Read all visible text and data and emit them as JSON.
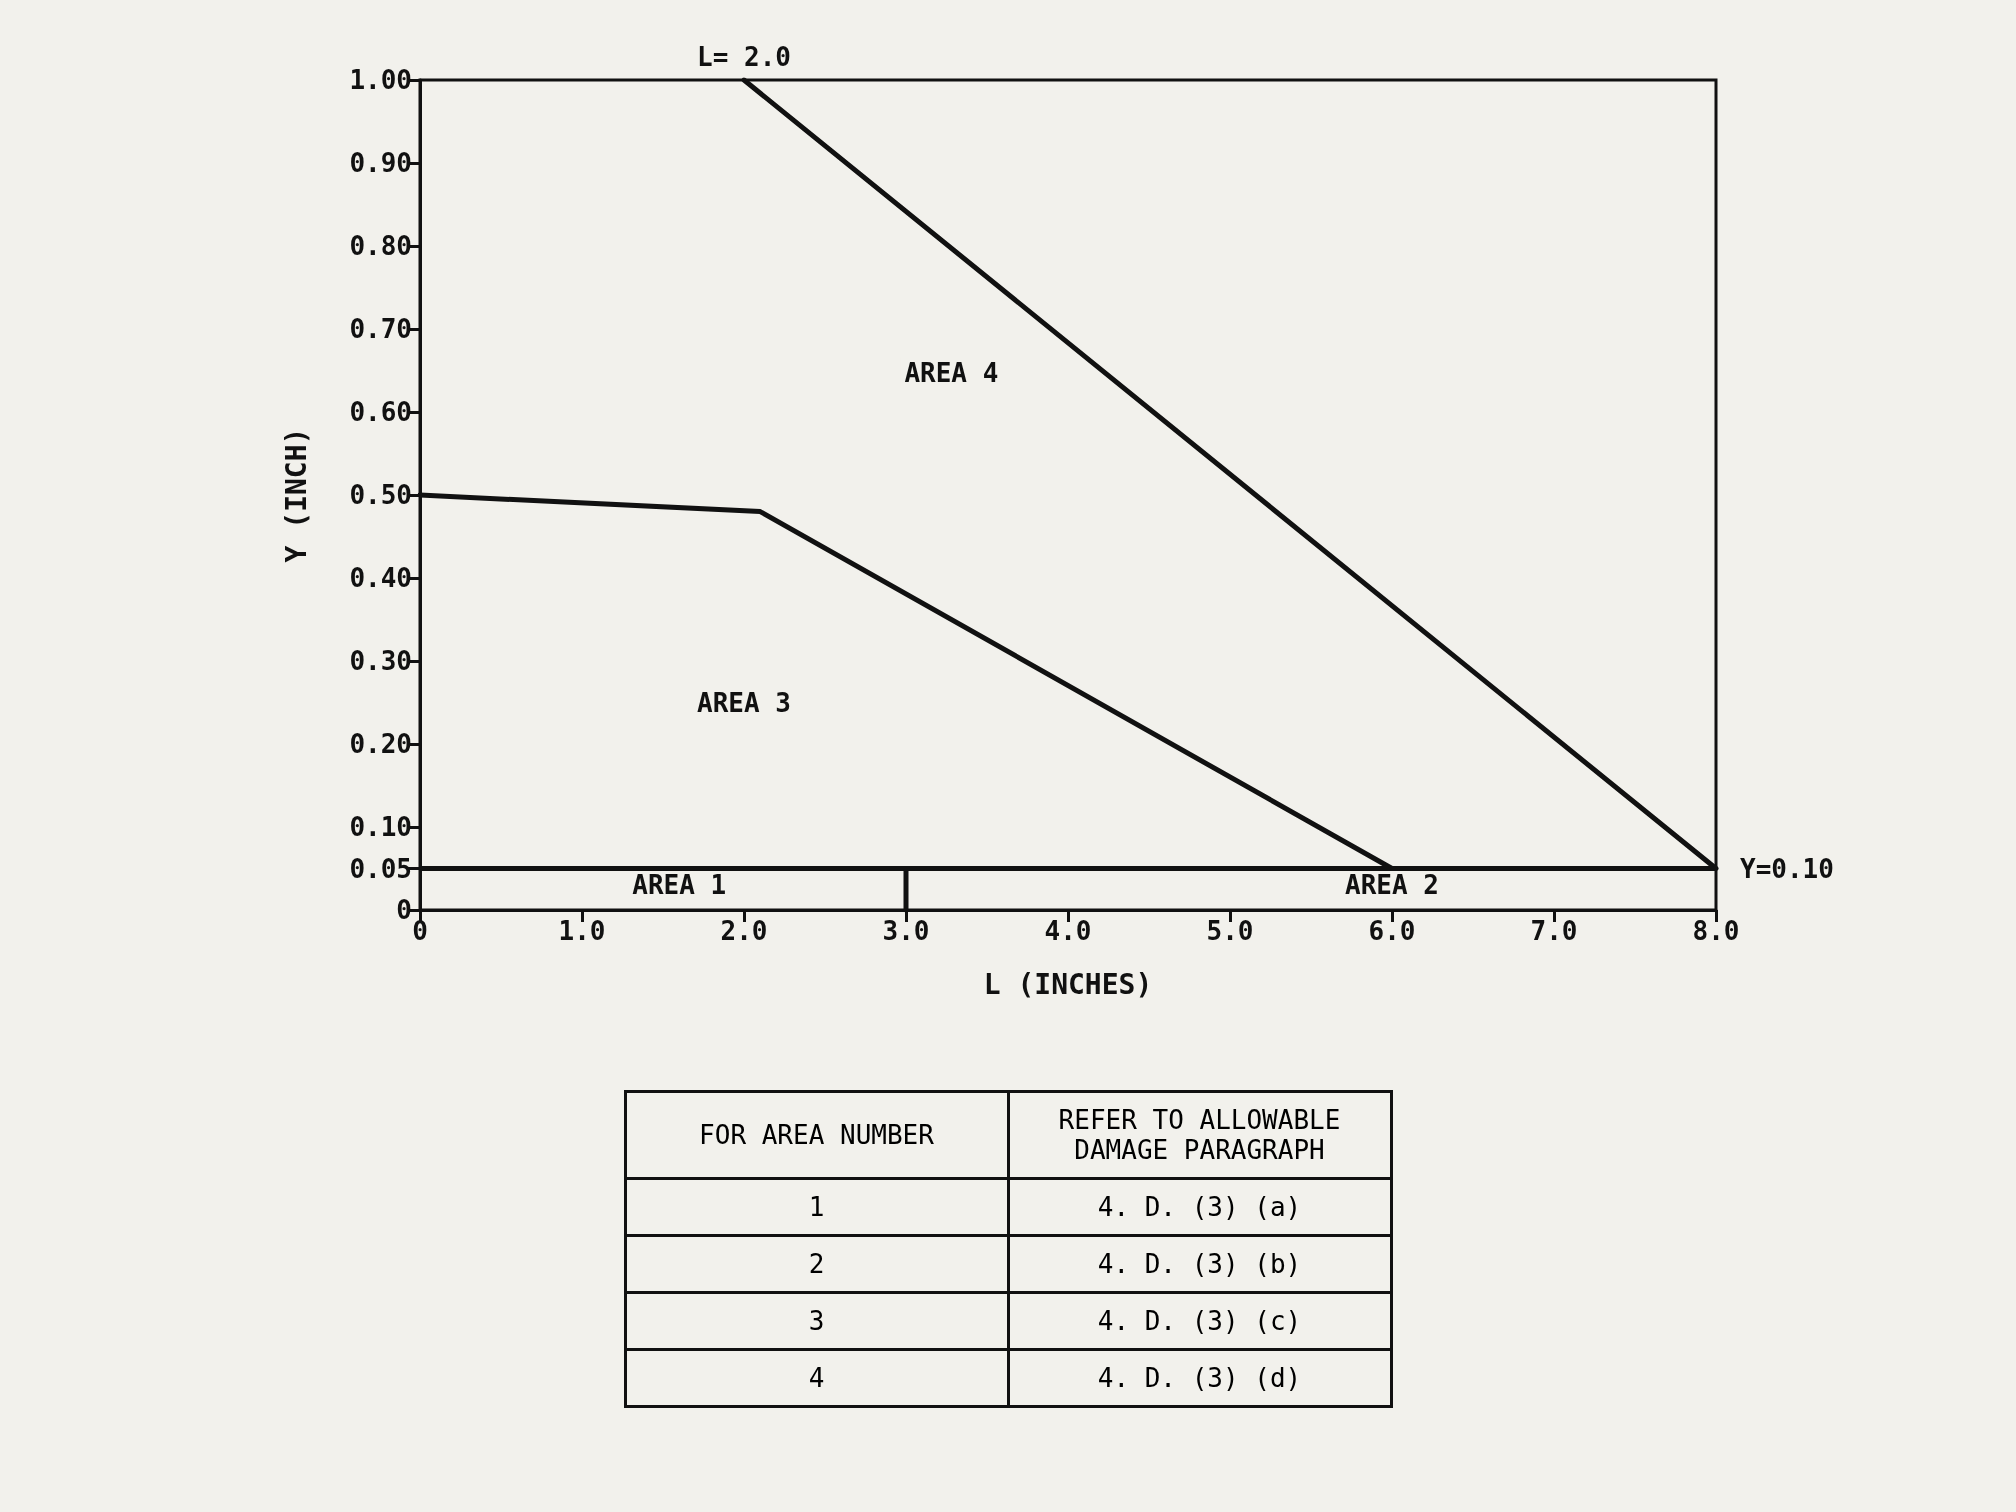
{
  "chart_data": {
    "type": "line",
    "xlabel": "L (INCHES)",
    "ylabel": "Y (INCH)",
    "xlim": [
      0,
      8
    ],
    "xticks": [
      0,
      {
        "value": 1,
        "label": "1.0"
      },
      {
        "value": 2,
        "label": "2.0"
      },
      {
        "value": 3,
        "label": "3.0"
      },
      {
        "value": 4,
        "label": "4.0"
      },
      {
        "value": 5,
        "label": "5.0"
      },
      {
        "value": 6,
        "label": "6.0"
      },
      {
        "value": 7,
        "label": "7.0"
      },
      {
        "value": 8,
        "label": "8.0"
      }
    ],
    "ylim": [
      0,
      1
    ],
    "yticks": [
      0,
      0.05,
      {
        "value": 0.1,
        "label": "0.10"
      },
      {
        "value": 0.2,
        "label": "0.20"
      },
      {
        "value": 0.3,
        "label": "0.30"
      },
      {
        "value": 0.4,
        "label": "0.40"
      },
      {
        "value": 0.5,
        "label": "0.50"
      },
      {
        "value": 0.6,
        "label": "0.60"
      },
      {
        "value": 0.7,
        "label": "0.70"
      },
      {
        "value": 0.8,
        "label": "0.80"
      },
      {
        "value": 0.9,
        "label": "0.90"
      },
      {
        "value": 1,
        "label": "1.00"
      }
    ],
    "grid": false,
    "marker": "none",
    "line_style": "solid",
    "series": [
      {
        "color": "#111111",
        "x": [
          2.0,
          8.0
        ],
        "values": [
          1.0,
          0.05
        ]
      },
      {
        "color": "#111111",
        "x": [
          0,
          2.1,
          6.0
        ],
        "values": [
          0.5,
          0.48,
          0.05
        ]
      },
      {
        "color": "#111111",
        "x": [
          3.0,
          3.0
        ],
        "values": [
          0,
          0.05
        ]
      }
    ],
    "ref_lines": [
      {
        "axis": "y",
        "value": 0.05,
        "color": "#111111"
      }
    ],
    "annotations": [
      "AREA 1",
      "AREA 2",
      "AREA 3",
      "AREA 4",
      {
        "text": "L= 2.0",
        "x": 2.0,
        "y": 1.0
      },
      {
        "text": "Y=0.10",
        "x": 8.0,
        "y": 0.05
      },
      "FOR AREA NUMBER",
      "REFER TO ALLOWABLE DAMAGE PARAGRAPH",
      "1",
      "4. D. (3) (a)",
      "2",
      "4. D. (3) (b)",
      "3",
      "4. D. (3) (c)",
      "4",
      "4. D. (3) (d)"
    ]
  }
}
